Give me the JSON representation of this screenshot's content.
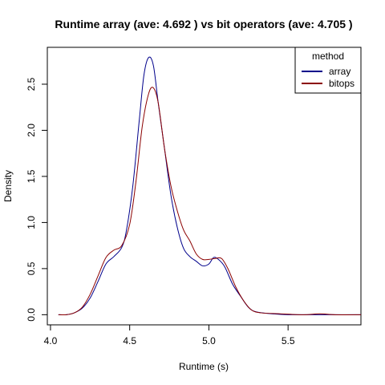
{
  "chart_data": {
    "type": "line",
    "title": "Runtime array (ave: 4.692 ) vs bit operators (ave: 4.705 )",
    "xlabel": "Runtime (s)",
    "ylabel": "Density",
    "xlim": [
      3.98,
      5.96
    ],
    "ylim": [
      -0.11,
      2.9
    ],
    "x_ticks": [
      "4.0",
      "4.5",
      "5.0",
      "5.5"
    ],
    "x_tick_values": [
      4.0,
      4.5,
      5.0,
      5.5
    ],
    "y_ticks": [
      "0.0",
      "0.5",
      "1.0",
      "1.5",
      "2.0",
      "2.5"
    ],
    "y_tick_values": [
      0.0,
      0.5,
      1.0,
      1.5,
      2.0,
      2.5
    ],
    "legend": {
      "title": "method",
      "position": "top-right",
      "entries": [
        "array",
        "bitops"
      ]
    },
    "series": [
      {
        "name": "array",
        "color": "#00008B",
        "points": [
          [
            4.05,
            0.0
          ],
          [
            4.1,
            0.0
          ],
          [
            4.15,
            0.02
          ],
          [
            4.2,
            0.07
          ],
          [
            4.25,
            0.18
          ],
          [
            4.3,
            0.36
          ],
          [
            4.35,
            0.55
          ],
          [
            4.4,
            0.63
          ],
          [
            4.45,
            0.73
          ],
          [
            4.48,
            0.92
          ],
          [
            4.52,
            1.4
          ],
          [
            4.56,
            2.1
          ],
          [
            4.59,
            2.6
          ],
          [
            4.62,
            2.79
          ],
          [
            4.65,
            2.7
          ],
          [
            4.68,
            2.3
          ],
          [
            4.72,
            1.8
          ],
          [
            4.76,
            1.3
          ],
          [
            4.8,
            0.95
          ],
          [
            4.84,
            0.72
          ],
          [
            4.88,
            0.63
          ],
          [
            4.92,
            0.58
          ],
          [
            4.96,
            0.53
          ],
          [
            5.0,
            0.55
          ],
          [
            5.03,
            0.62
          ],
          [
            5.06,
            0.6
          ],
          [
            5.1,
            0.52
          ],
          [
            5.15,
            0.33
          ],
          [
            5.2,
            0.2
          ],
          [
            5.25,
            0.08
          ],
          [
            5.3,
            0.03
          ],
          [
            5.4,
            0.01
          ],
          [
            5.5,
            0.0
          ],
          [
            5.7,
            0.0
          ],
          [
            5.96,
            0.0
          ]
        ]
      },
      {
        "name": "bitops",
        "color": "#8B0000",
        "points": [
          [
            4.05,
            0.0
          ],
          [
            4.1,
            0.0
          ],
          [
            4.15,
            0.02
          ],
          [
            4.2,
            0.08
          ],
          [
            4.25,
            0.22
          ],
          [
            4.3,
            0.42
          ],
          [
            4.35,
            0.62
          ],
          [
            4.4,
            0.7
          ],
          [
            4.45,
            0.75
          ],
          [
            4.5,
            0.98
          ],
          [
            4.54,
            1.45
          ],
          [
            4.58,
            2.05
          ],
          [
            4.62,
            2.4
          ],
          [
            4.65,
            2.46
          ],
          [
            4.68,
            2.3
          ],
          [
            4.72,
            1.8
          ],
          [
            4.76,
            1.4
          ],
          [
            4.8,
            1.13
          ],
          [
            4.84,
            0.92
          ],
          [
            4.88,
            0.8
          ],
          [
            4.92,
            0.66
          ],
          [
            4.96,
            0.6
          ],
          [
            5.0,
            0.6
          ],
          [
            5.04,
            0.61
          ],
          [
            5.08,
            0.61
          ],
          [
            5.12,
            0.5
          ],
          [
            5.17,
            0.3
          ],
          [
            5.22,
            0.15
          ],
          [
            5.27,
            0.05
          ],
          [
            5.33,
            0.02
          ],
          [
            5.45,
            0.01
          ],
          [
            5.6,
            0.0
          ],
          [
            5.7,
            0.01
          ],
          [
            5.8,
            0.0
          ],
          [
            5.96,
            0.0
          ]
        ]
      }
    ]
  }
}
